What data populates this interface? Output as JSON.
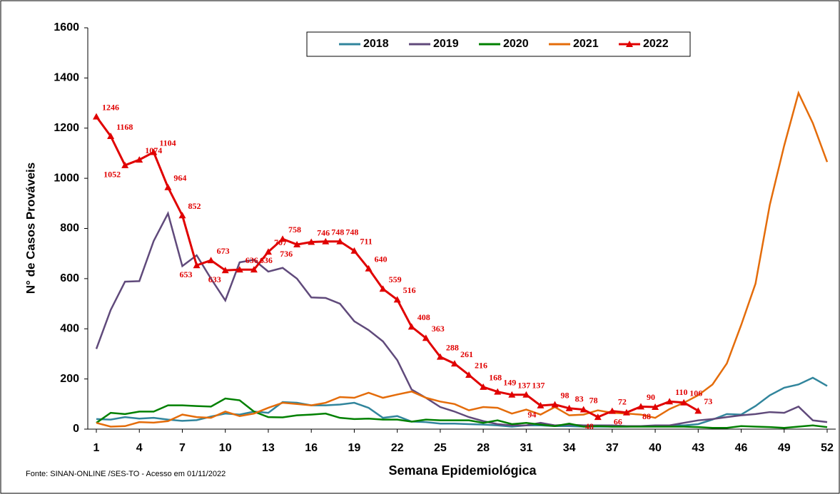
{
  "chart_data": {
    "type": "line",
    "y_label": "N° de Casos Prováveis",
    "x_label": "Semana Epidemiológica",
    "source": "Fonte: SINAN-ONLINE /SES-TO - Acesso em  01/11/2022",
    "x": [
      1,
      2,
      3,
      4,
      5,
      6,
      7,
      8,
      9,
      10,
      11,
      12,
      13,
      14,
      15,
      16,
      17,
      18,
      19,
      20,
      21,
      22,
      23,
      24,
      25,
      26,
      27,
      28,
      29,
      30,
      31,
      32,
      33,
      34,
      35,
      36,
      37,
      38,
      39,
      40,
      41,
      42,
      43,
      44,
      45,
      46,
      47,
      48,
      49,
      50,
      51,
      52
    ],
    "xlim": [
      1,
      52
    ],
    "xticks": [
      1,
      4,
      7,
      10,
      13,
      16,
      19,
      22,
      25,
      28,
      31,
      34,
      37,
      40,
      43,
      46,
      49,
      52
    ],
    "ylim": [
      0,
      1600
    ],
    "yticks": [
      0,
      200,
      400,
      600,
      800,
      1000,
      1200,
      1400,
      1600
    ],
    "legend": "top",
    "series": [
      {
        "name": "2018",
        "color": "#31859c",
        "values": [
          40,
          38,
          48,
          42,
          45,
          38,
          33,
          36,
          50,
          62,
          58,
          70,
          65,
          108,
          105,
          95,
          95,
          98,
          105,
          85,
          45,
          52,
          30,
          28,
          22,
          22,
          20,
          18,
          15,
          10,
          15,
          15,
          12,
          12,
          10,
          10,
          10,
          10,
          12,
          12,
          15,
          15,
          20,
          38,
          60,
          58,
          92,
          135,
          165,
          178,
          205,
          172
        ]
      },
      {
        "name": "2019",
        "color": "#604a7b",
        "values": [
          320,
          475,
          588,
          590,
          750,
          860,
          650,
          693,
          600,
          513,
          665,
          675,
          628,
          643,
          600,
          525,
          523,
          500,
          430,
          395,
          350,
          275,
          158,
          125,
          88,
          70,
          48,
          32,
          20,
          15,
          15,
          25,
          15,
          18,
          15,
          15,
          15,
          12,
          12,
          15,
          15,
          25,
          35,
          40,
          48,
          55,
          60,
          68,
          65,
          90,
          35,
          28
        ]
      },
      {
        "name": "2020",
        "color": "#008000",
        "values": [
          25,
          65,
          60,
          70,
          70,
          95,
          95,
          92,
          90,
          122,
          115,
          70,
          48,
          47,
          55,
          58,
          62,
          45,
          40,
          42,
          38,
          38,
          30,
          38,
          35,
          35,
          35,
          25,
          35,
          20,
          25,
          18,
          12,
          22,
          10,
          12,
          10,
          10,
          10,
          10,
          10,
          10,
          8,
          5,
          5,
          12,
          10,
          8,
          5,
          10,
          15,
          8
        ]
      },
      {
        "name": "2021",
        "color": "#e46c0a",
        "values": [
          25,
          10,
          12,
          28,
          26,
          32,
          58,
          48,
          45,
          70,
          52,
          62,
          85,
          105,
          100,
          95,
          105,
          128,
          125,
          145,
          125,
          138,
          150,
          125,
          110,
          100,
          75,
          88,
          85,
          62,
          78,
          58,
          88,
          55,
          58,
          75,
          65,
          62,
          58,
          45,
          80,
          105,
          135,
          178,
          262,
          415,
          580,
          895,
          1130,
          1340,
          1220,
          1065
        ]
      },
      {
        "name": "2022",
        "color": "#e00000",
        "marker": "triangle",
        "data_labels": true,
        "values": [
          1246,
          1168,
          1052,
          1074,
          1104,
          964,
          852,
          653,
          673,
          633,
          636,
          636,
          707,
          758,
          736,
          746,
          748,
          748,
          711,
          640,
          559,
          516,
          408,
          363,
          288,
          261,
          216,
          168,
          149,
          137,
          137,
          94,
          98,
          83,
          78,
          48,
          72,
          66,
          90,
          88,
          110,
          106,
          73,
          null,
          null,
          null,
          null,
          null,
          null,
          null,
          null,
          null
        ]
      }
    ]
  }
}
